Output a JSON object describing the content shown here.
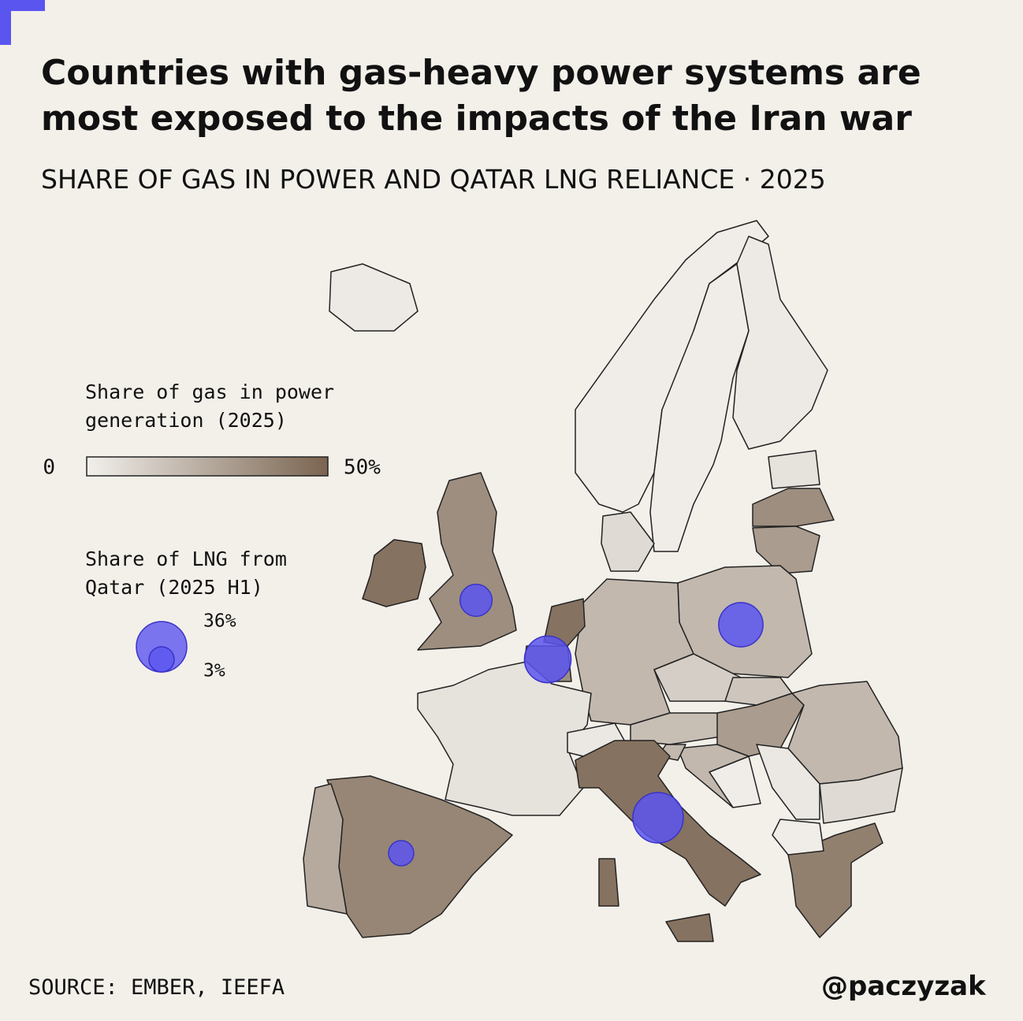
{
  "title": "Countries with gas-heavy power systems are most exposed to the impacts of the Iran war",
  "subtitle": "SHARE OF GAS IN POWER AND QATAR LNG RELIANCE · 2025",
  "gas_legend": {
    "title": "Share of gas in power generation (2025)",
    "ticks": [
      0,
      {
        "value": 50,
        "label": "50%"
      }
    ]
  },
  "lng_legend": {
    "title": "Share of LNG from Qatar (2025 H1)",
    "sizes": [
      {
        "value": 36,
        "label": "36%"
      },
      {
        "value": 3,
        "label": "3%"
      }
    ]
  },
  "gas_share": [
    2,
    1,
    1,
    2,
    5,
    35,
    30,
    8,
    20,
    20,
    45,
    35,
    5,
    3,
    18,
    12,
    15,
    30,
    20,
    8,
    3,
    1,
    20,
    20,
    40,
    1,
    45,
    45,
    45,
    35,
    45,
    38,
    25
  ],
  "qatar_lng_share": [
    12,
    31,
    28,
    36,
    3
  ],
  "colors": {
    "low": "#f2f0ec",
    "high": "#7a6450",
    "bubble": "#5b55f0",
    "accent": "#5b55f0"
  },
  "source": "SOURCE: EMBER, IEEFA",
  "credit": "@paczyzak"
}
